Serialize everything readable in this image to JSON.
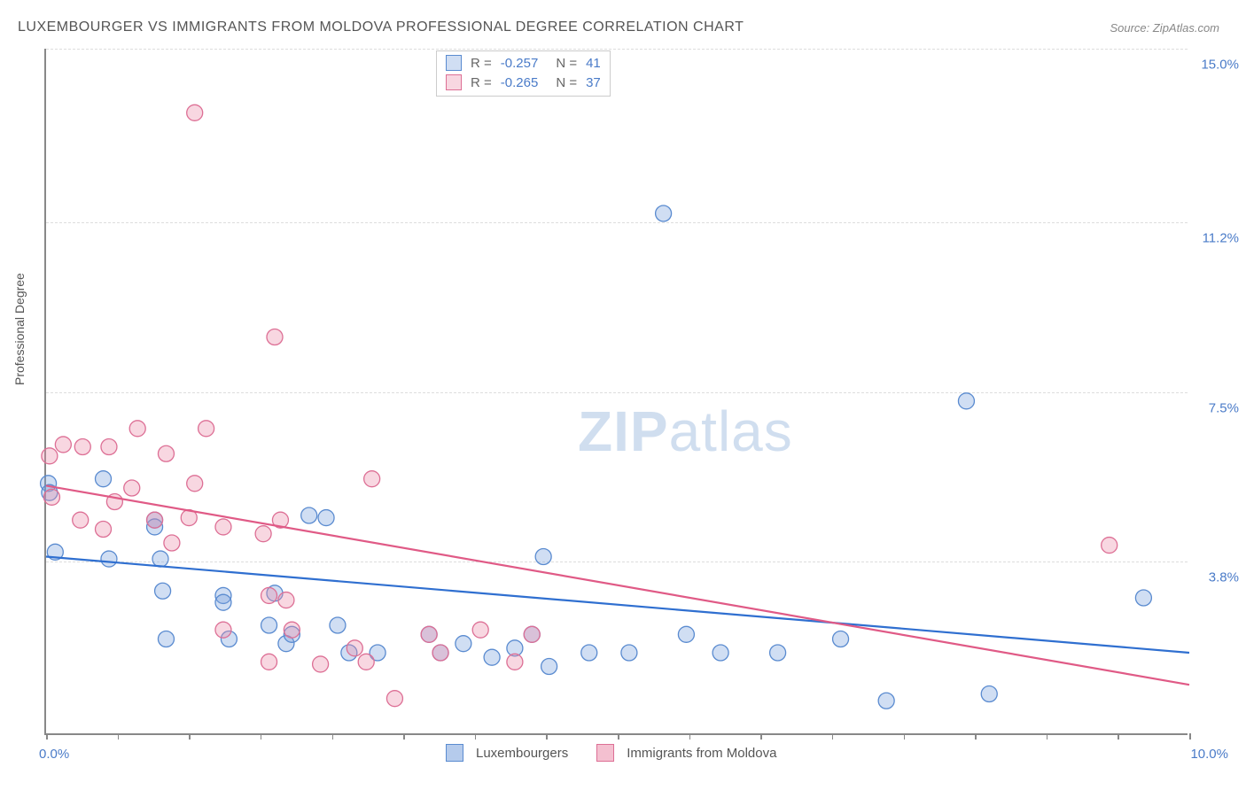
{
  "title": "LUXEMBOURGER VS IMMIGRANTS FROM MOLDOVA PROFESSIONAL DEGREE CORRELATION CHART",
  "source": "Source: ZipAtlas.com",
  "y_axis_label": "Professional Degree",
  "watermark_bold": "ZIP",
  "watermark_light": "atlas",
  "chart": {
    "type": "scatter",
    "background_color": "#ffffff",
    "grid_color": "#dddddd",
    "axis_color": "#888888",
    "xlim": [
      0.0,
      10.0
    ],
    "ylim": [
      0.0,
      15.0
    ],
    "x_tick_labels": {
      "min": "0.0%",
      "max": "10.0%"
    },
    "x_ticks": [
      0,
      0.625,
      1.25,
      1.875,
      2.5,
      3.125,
      3.75,
      4.375,
      5.0,
      5.625,
      6.25,
      6.875,
      7.5,
      8.125,
      8.75,
      9.375,
      10.0
    ],
    "y_grid": [
      {
        "value": 3.8,
        "label": "3.8%"
      },
      {
        "value": 7.5,
        "label": "7.5%"
      },
      {
        "value": 11.2,
        "label": "11.2%"
      },
      {
        "value": 15.0,
        "label": "15.0%"
      }
    ],
    "marker_radius": 9,
    "marker_stroke_width": 1.3,
    "line_width": 2.2,
    "series": [
      {
        "name": "Luxembourgers",
        "fill": "rgba(120,160,220,0.35)",
        "stroke": "#5a8bd0",
        "line_color": "#2f6fd0",
        "trend": {
          "x1": 0.0,
          "y1": 3.9,
          "x2": 10.0,
          "y2": 1.8
        },
        "stats": {
          "R": "-0.257",
          "N": "41"
        },
        "points": [
          [
            0.02,
            5.5
          ],
          [
            0.03,
            5.3
          ],
          [
            0.08,
            4.0
          ],
          [
            0.5,
            5.6
          ],
          [
            0.55,
            3.85
          ],
          [
            0.95,
            4.7
          ],
          [
            0.95,
            4.55
          ],
          [
            1.0,
            3.85
          ],
          [
            1.02,
            3.15
          ],
          [
            1.05,
            2.1
          ],
          [
            1.55,
            3.05
          ],
          [
            1.55,
            2.9
          ],
          [
            1.6,
            2.1
          ],
          [
            1.95,
            2.4
          ],
          [
            2.0,
            3.1
          ],
          [
            2.1,
            2.0
          ],
          [
            2.15,
            2.2
          ],
          [
            2.3,
            4.8
          ],
          [
            2.45,
            4.75
          ],
          [
            2.55,
            2.4
          ],
          [
            2.65,
            1.8
          ],
          [
            2.9,
            1.8
          ],
          [
            3.35,
            2.2
          ],
          [
            3.45,
            1.8
          ],
          [
            3.65,
            2.0
          ],
          [
            3.9,
            1.7
          ],
          [
            4.1,
            1.9
          ],
          [
            4.25,
            2.2
          ],
          [
            4.35,
            3.9
          ],
          [
            4.4,
            1.5
          ],
          [
            4.75,
            1.8
          ],
          [
            5.1,
            1.8
          ],
          [
            5.4,
            11.4
          ],
          [
            5.6,
            2.2
          ],
          [
            5.9,
            1.8
          ],
          [
            6.4,
            1.8
          ],
          [
            6.95,
            2.1
          ],
          [
            7.35,
            0.75
          ],
          [
            8.05,
            7.3
          ],
          [
            8.25,
            0.9
          ],
          [
            9.6,
            3.0
          ]
        ]
      },
      {
        "name": "Immigrants from Moldova",
        "fill": "rgba(235,140,170,0.35)",
        "stroke": "#dd6f95",
        "line_color": "#e05a86",
        "trend": {
          "x1": 0.0,
          "y1": 5.45,
          "x2": 10.0,
          "y2": 1.1
        },
        "stats": {
          "R": "-0.265",
          "N": "37"
        },
        "points": [
          [
            0.03,
            6.1
          ],
          [
            0.05,
            5.2
          ],
          [
            0.15,
            6.35
          ],
          [
            0.3,
            4.7
          ],
          [
            0.32,
            6.3
          ],
          [
            0.5,
            4.5
          ],
          [
            0.55,
            6.3
          ],
          [
            0.6,
            5.1
          ],
          [
            0.75,
            5.4
          ],
          [
            0.8,
            6.7
          ],
          [
            0.95,
            4.7
          ],
          [
            1.05,
            6.15
          ],
          [
            1.1,
            4.2
          ],
          [
            1.25,
            4.75
          ],
          [
            1.3,
            5.5
          ],
          [
            1.3,
            13.6
          ],
          [
            1.4,
            6.7
          ],
          [
            1.55,
            4.55
          ],
          [
            1.55,
            2.3
          ],
          [
            1.9,
            4.4
          ],
          [
            1.95,
            3.05
          ],
          [
            1.95,
            1.6
          ],
          [
            2.0,
            8.7
          ],
          [
            2.05,
            4.7
          ],
          [
            2.1,
            2.95
          ],
          [
            2.15,
            2.3
          ],
          [
            2.4,
            1.55
          ],
          [
            2.7,
            1.9
          ],
          [
            2.8,
            1.6
          ],
          [
            2.85,
            5.6
          ],
          [
            3.05,
            0.8
          ],
          [
            3.35,
            2.2
          ],
          [
            3.45,
            1.8
          ],
          [
            3.8,
            2.3
          ],
          [
            4.1,
            1.6
          ],
          [
            4.25,
            2.2
          ],
          [
            9.3,
            4.15
          ]
        ]
      }
    ],
    "legend_top_labels": {
      "R": "R =",
      "N": "N ="
    },
    "legend_bottom": [
      {
        "label": "Luxembourgers",
        "fill": "rgba(120,160,220,0.55)",
        "stroke": "#5a8bd0"
      },
      {
        "label": "Immigrants from Moldova",
        "fill": "rgba(235,140,170,0.55)",
        "stroke": "#dd6f95"
      }
    ]
  }
}
